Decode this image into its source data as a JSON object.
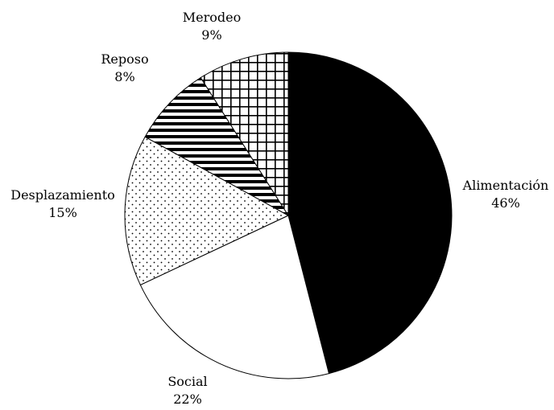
{
  "chart_data": {
    "type": "pie",
    "title": "",
    "slices": [
      {
        "label": "Alimentación",
        "value": 46,
        "value_label": "46%",
        "pattern": "solid-black"
      },
      {
        "label": "Social",
        "value": 22,
        "value_label": "22%",
        "pattern": "white"
      },
      {
        "label": "Desplazamiento",
        "value": 15,
        "value_label": "15%",
        "pattern": "dots"
      },
      {
        "label": "Reposo",
        "value": 8,
        "value_label": "8%",
        "pattern": "horizontal-stripes"
      },
      {
        "label": "Merodeo",
        "value": 9,
        "value_label": "9%",
        "pattern": "grid"
      }
    ],
    "start": "12 o'clock",
    "direction": "clockwise",
    "legend": "none",
    "slice_outline_color": "#000000"
  }
}
